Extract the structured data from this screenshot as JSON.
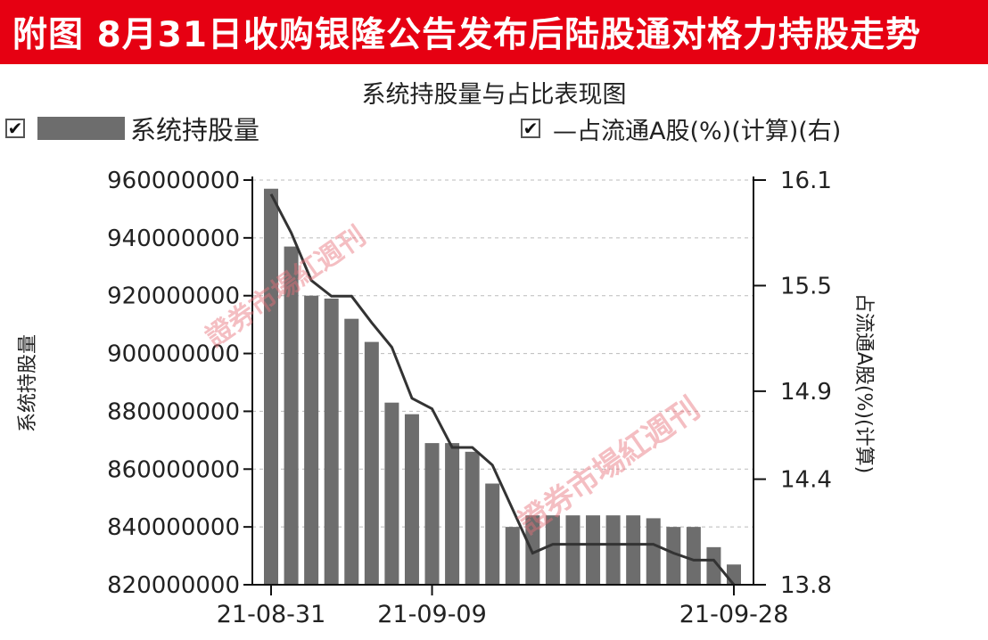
{
  "banner": {
    "title": "附图  8月31日收购银隆公告发布后陆股通对格力持股走势"
  },
  "legend": {
    "bar_label": "系统持股量",
    "line_label": "—占流通A股(%)(计算)(右)",
    "check_mark": "✔"
  },
  "watermark": {
    "text": "證券市場紅週刊"
  },
  "chart_data": {
    "type": "bar",
    "title": "系统持股量与占比表现图",
    "ylabel": "系统持股量",
    "y2label": "占流通A股(%)(计算)",
    "ylim": [
      820000000,
      960000000
    ],
    "y2lim": [
      13.8,
      16.1
    ],
    "yticks": [
      "960000000",
      "940000000",
      "920000000",
      "900000000",
      "880000000",
      "860000000",
      "840000000",
      "820000000"
    ],
    "y2ticks": [
      "16.1",
      "15.5",
      "14.9",
      "14.4",
      "13.8"
    ],
    "xticks": [
      "21-08-31",
      "21-09-09",
      "21-09-28"
    ],
    "bar_color": "#6d6d6d",
    "line_color": "#333333",
    "series": [
      {
        "name": "系统持股量",
        "values": [
          957000000,
          937000000,
          920000000,
          919000000,
          912000000,
          904000000,
          883000000,
          879000000,
          869000000,
          869000000,
          866000000,
          855000000,
          840000000,
          844000000,
          844000000,
          844000000,
          844000000,
          844000000,
          844000000,
          843000000,
          840000000,
          840000000,
          833000000,
          827000000
        ]
      },
      {
        "name": "占流通A股(%)(计算)(右)",
        "values": [
          16.02,
          15.8,
          15.53,
          15.44,
          15.44,
          15.29,
          15.15,
          14.86,
          14.8,
          14.58,
          14.58,
          14.48,
          14.23,
          13.98,
          14.03,
          14.03,
          14.03,
          14.03,
          14.03,
          14.03,
          13.98,
          13.94,
          13.94,
          13.8
        ]
      }
    ]
  }
}
